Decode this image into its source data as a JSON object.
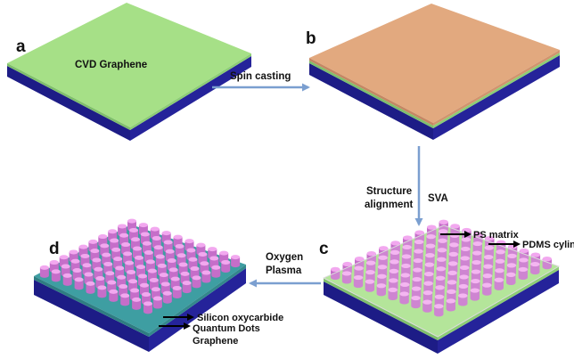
{
  "panels": {
    "a": {
      "letter": "a",
      "label": "CVD Graphene"
    },
    "b": {
      "letter": "b"
    },
    "c": {
      "letter": "c",
      "labels": [
        "PS matrix",
        "PDMS cylinder"
      ]
    },
    "d": {
      "letter": "d",
      "labels": [
        "Silicon oxycarbide",
        "Quantum Dots",
        "Graphene"
      ]
    }
  },
  "arrows": {
    "a_to_b": {
      "label": "Spin casting"
    },
    "b_to_c": {
      "label_left_line1": "Structure",
      "label_left_line2": "alignment",
      "label_right": "SVA"
    },
    "c_to_d": {
      "label_line1": "Oxygen",
      "label_line2": "Plasma"
    }
  },
  "colors": {
    "substrate_top": "#2d2fa6",
    "substrate_side": "#1d1c86",
    "graphene": "#a6e087",
    "polymer": "#e2a97f",
    "oxycarbide": "#3e9ea2",
    "cylinder_top": "#f2a8ef",
    "cylinder_side": "#c56ec9",
    "process_arrow": "#7b9fd0",
    "pointer_arrow": "#000000"
  }
}
